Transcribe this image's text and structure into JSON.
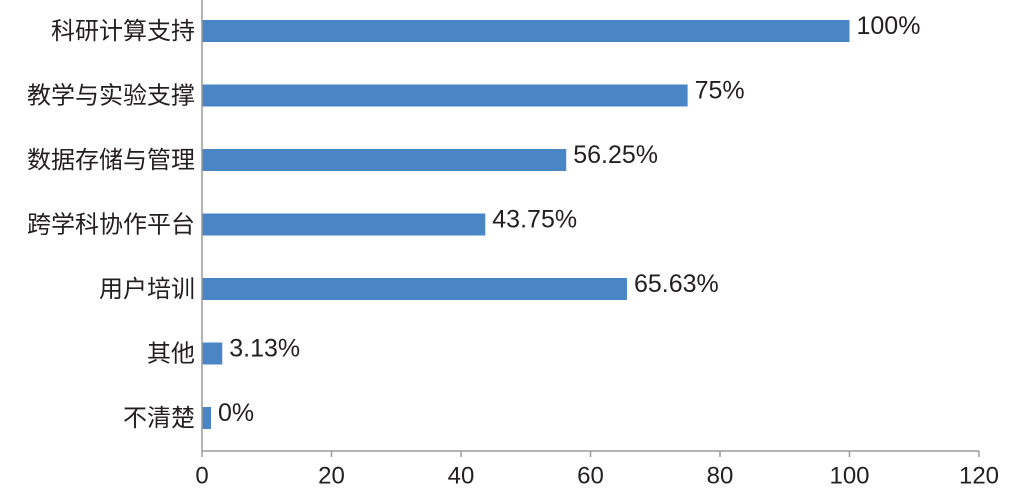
{
  "chart_data": {
    "type": "bar",
    "orientation": "horizontal",
    "categories": [
      "科研计算支持",
      "教学与实验支撑",
      "数据存储与管理",
      "跨学科协作平台",
      "用户培训",
      "其他",
      "不清楚"
    ],
    "values": [
      100,
      75,
      56.25,
      43.75,
      65.63,
      3.13,
      0
    ],
    "data_labels": [
      "100%",
      "75%",
      "56.25%",
      "43.75%",
      "65.63%",
      "3.13%",
      "0%"
    ],
    "xlim": [
      0,
      120
    ],
    "xticks": [
      0,
      20,
      40,
      60,
      80,
      100,
      120
    ],
    "grid": false,
    "legend": "none",
    "bar_color": "#4a86c5",
    "axis_color": "#9a9a9a",
    "text_color": "#231f20"
  }
}
